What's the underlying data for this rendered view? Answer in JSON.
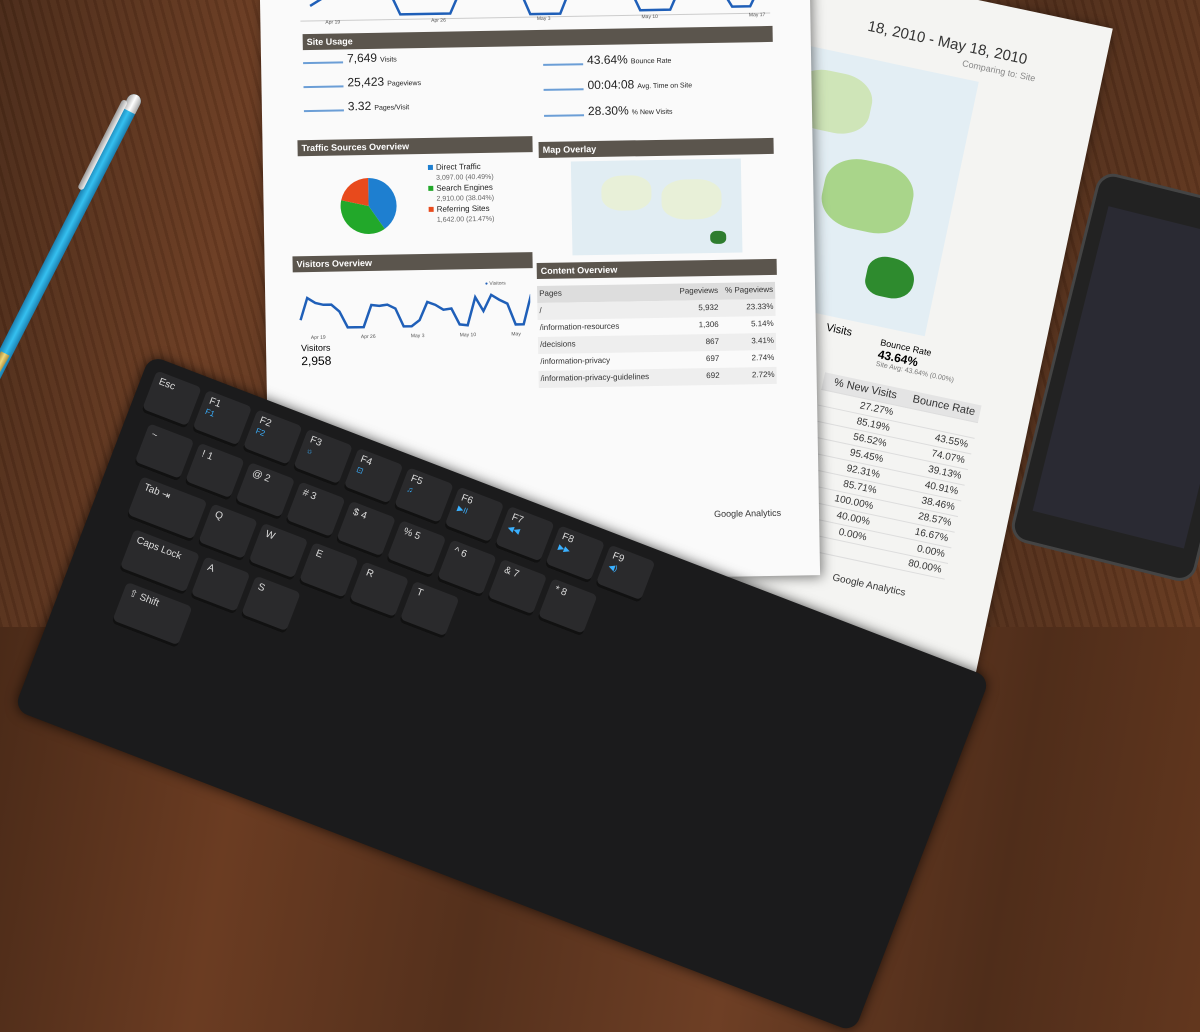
{
  "report": {
    "top_axis": [
      "Apr 19",
      "Apr 26",
      "May 3",
      "May 10",
      "May 17"
    ],
    "site_usage": {
      "title": "Site Usage",
      "metrics": [
        {
          "value": "7,649",
          "label": "Visits"
        },
        {
          "value": "25,423",
          "label": "Pageviews"
        },
        {
          "value": "3.32",
          "label": "Pages/Visit"
        },
        {
          "value": "43.64%",
          "label": "Bounce Rate"
        },
        {
          "value": "00:04:08",
          "label": "Avg. Time on Site"
        },
        {
          "value": "28.30%",
          "label": "% New Visits"
        }
      ]
    },
    "traffic": {
      "title": "Traffic Sources Overview",
      "items": [
        {
          "label": "Direct Traffic",
          "detail": "3,097.00 (40.49%)",
          "color": "#1e7fd0",
          "pct": 40.49
        },
        {
          "label": "Search Engines",
          "detail": "2,910.00 (38.04%)",
          "color": "#22a82a",
          "pct": 38.04
        },
        {
          "label": "Referring Sites",
          "detail": "1,642.00 (21.47%)",
          "color": "#e84a1c",
          "pct": 21.47
        }
      ]
    },
    "map": {
      "title": "Map Overlay"
    },
    "visitors": {
      "title": "Visitors Overview",
      "legend": "Visitors",
      "label": "Visitors",
      "value": "2,958",
      "axis": [
        "Apr 19",
        "Apr 26",
        "May 3",
        "May 10",
        "May"
      ]
    },
    "content": {
      "title": "Content Overview",
      "headers": [
        "Pages",
        "Pageviews",
        "% Pageviews"
      ],
      "rows": [
        [
          "/",
          "5,932",
          "23.33%"
        ],
        [
          "/information-resources",
          "1,306",
          "5.14%"
        ],
        [
          "/decisions",
          "867",
          "3.41%"
        ],
        [
          "/information-privacy",
          "697",
          "2.74%"
        ],
        [
          "/information-privacy-guidelines",
          "692",
          "2.72%"
        ]
      ]
    },
    "footer": "Google Analytics"
  },
  "back_report": {
    "range": "18, 2010 - May 18, 2010",
    "comparing": "Comparing to: Site",
    "visits_label": "Visits",
    "bounce_title": "Bounce Rate",
    "bounce_value": "43.64%",
    "site_avg": "Site Avg: 43.64% (0.00%)",
    "headers": [
      "% New Visits",
      "Bounce Rate"
    ],
    "rows": [
      [
        "27.27%",
        ""
      ],
      [
        "85.19%",
        "43.55%"
      ],
      [
        "56.52%",
        "74.07%"
      ],
      [
        "95.45%",
        "39.13%"
      ],
      [
        "92.31%",
        "40.91%"
      ],
      [
        "85.71%",
        "38.46%"
      ],
      [
        "100.00%",
        "28.57%"
      ],
      [
        "40.00%",
        "16.67%"
      ],
      [
        "0.00%",
        "0.00%"
      ],
      [
        "",
        "80.00%"
      ]
    ],
    "footer": "Google Analytics"
  },
  "keyboard": {
    "rows": [
      [
        {
          "k": "Esc"
        },
        {
          "k": "F1",
          "f": "F1"
        },
        {
          "k": "F2",
          "f": "F2"
        },
        {
          "k": "F3",
          "f": "☼"
        },
        {
          "k": "F4",
          "f": "⊡"
        },
        {
          "k": "F5",
          "f": "♫"
        },
        {
          "k": "F6",
          "f": "▶II"
        },
        {
          "k": "F7",
          "f": "◀◀"
        },
        {
          "k": "F8",
          "f": "▶▶"
        },
        {
          "k": "F9",
          "f": "◀)"
        }
      ],
      [
        {
          "k": "~"
        },
        {
          "k": "! 1"
        },
        {
          "k": "@ 2"
        },
        {
          "k": "# 3"
        },
        {
          "k": "$ 4"
        },
        {
          "k": "% 5"
        },
        {
          "k": "^ 6"
        },
        {
          "k": "& 7"
        },
        {
          "k": "* 8"
        }
      ],
      [
        {
          "k": "Tab ⇥"
        },
        {
          "k": "Q"
        },
        {
          "k": "W"
        },
        {
          "k": "E"
        },
        {
          "k": "R"
        },
        {
          "k": "T"
        }
      ],
      [
        {
          "k": "Caps Lock"
        },
        {
          "k": "A"
        },
        {
          "k": "S"
        }
      ],
      [
        {
          "k": "⇧ Shift"
        }
      ]
    ]
  }
}
